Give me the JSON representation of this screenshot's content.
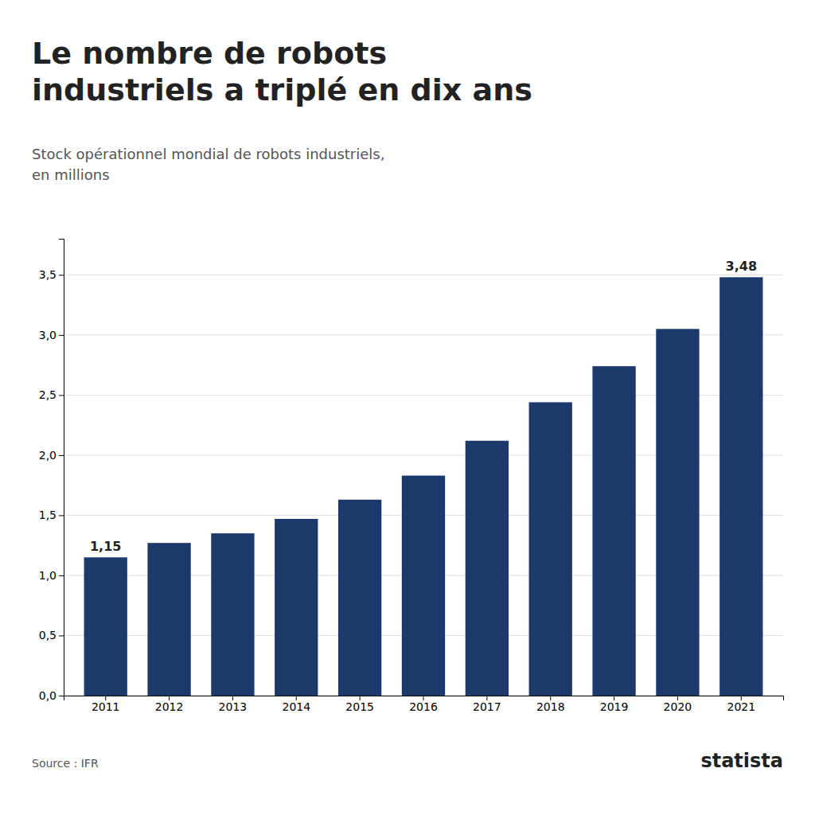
{
  "chart_data": {
    "type": "bar",
    "title": "Le nombre de robots\nindustriels a triplé en dix ans",
    "subtitle": "Stock opérationnel mondial de robots industriels,\nen millions",
    "categories": [
      2011,
      2012,
      2013,
      2014,
      2015,
      2016,
      2017,
      2018,
      2019,
      2020,
      2021
    ],
    "values": [
      1.15,
      1.27,
      1.35,
      1.47,
      1.63,
      1.83,
      2.12,
      2.44,
      2.74,
      3.05,
      3.48
    ],
    "value_labels": [
      "1,15",
      null,
      null,
      null,
      null,
      null,
      null,
      null,
      null,
      null,
      "3,48"
    ],
    "data_labels": true,
    "color": "#1b3a6b",
    "ylim": [
      0,
      3.8
    ],
    "yticks": [
      {
        "value": 0.0,
        "label": "0,0"
      },
      {
        "value": 0.5,
        "label": "0,5"
      },
      {
        "value": 1.0,
        "label": "1,0"
      },
      {
        "value": 1.5,
        "label": "1,5"
      },
      {
        "value": 2.0,
        "label": "2,0"
      },
      {
        "value": 2.5,
        "label": "2,5"
      },
      {
        "value": 3.0,
        "label": "3,0"
      },
      {
        "value": 3.5,
        "label": "3,5"
      }
    ],
    "grid": true,
    "source": "Source : IFR",
    "annotations": [
      "statista"
    ]
  }
}
